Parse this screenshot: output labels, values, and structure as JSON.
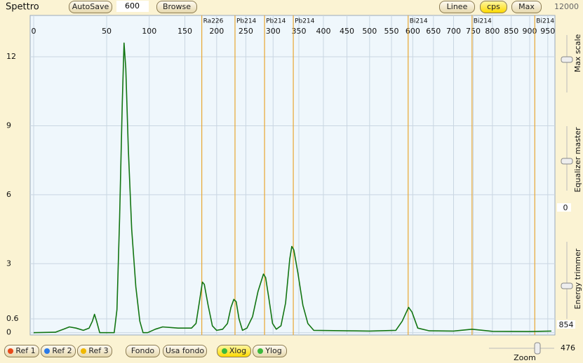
{
  "toolbar": {
    "title": "Spettro",
    "autosave": "AutoSave",
    "interval": 600,
    "browse": "Browse",
    "lines": "Linee",
    "cps": "cps",
    "max": "Max",
    "max_value": 12000
  },
  "chart_data": {
    "type": "line",
    "x": [
      0,
      8,
      13,
      17,
      22,
      28,
      33,
      36,
      38,
      40,
      43,
      58,
      61,
      64,
      67,
      69,
      71,
      74,
      78,
      83,
      88,
      92,
      98,
      108,
      118,
      140,
      160,
      167,
      172,
      177,
      180,
      186,
      193,
      200,
      210,
      218,
      224,
      229,
      233,
      238,
      244,
      252,
      262,
      272,
      282,
      286,
      292,
      299,
      306,
      315,
      324,
      332,
      336,
      340,
      348,
      358,
      368,
      380,
      450,
      500,
      560,
      575,
      590,
      598,
      612,
      640,
      700,
      747,
      800,
      900,
      960
    ],
    "series": [
      {
        "color": "#127512",
        "values": [
          0,
          0.02,
          0.15,
          0.25,
          0.2,
          0.1,
          0.2,
          0.5,
          0.8,
          0.5,
          0,
          0,
          1,
          5,
          10,
          12.6,
          11.5,
          8,
          4.5,
          2,
          0.5,
          0,
          0,
          0.15,
          0.25,
          0.2,
          0.2,
          0.4,
          1.3,
          2.2,
          2.1,
          1.2,
          0.3,
          0.1,
          0.15,
          0.4,
          1.1,
          1.45,
          1.35,
          0.6,
          0.1,
          0.2,
          0.7,
          1.8,
          2.55,
          2.4,
          1.5,
          0.4,
          0.15,
          0.3,
          1.3,
          3.2,
          3.75,
          3.6,
          2.6,
          1.2,
          0.4,
          0.1,
          0.08,
          0.07,
          0.1,
          0.5,
          1.1,
          0.9,
          0.2,
          0.08,
          0.07,
          0.15,
          0.06,
          0.05,
          0.07
        ]
      }
    ],
    "xlim": [
      0,
      970
    ],
    "ylim": [
      -0.1,
      13.8
    ],
    "xticks": [
      0,
      50,
      100,
      150,
      200,
      250,
      300,
      350,
      400,
      450,
      500,
      550,
      600,
      650,
      700,
      750,
      800,
      850,
      900,
      950
    ],
    "yticks": [
      0,
      0.6,
      3,
      6,
      9,
      12
    ],
    "grid": true,
    "markers": [
      {
        "label": "Ra226",
        "x": 176
      },
      {
        "label": "Pb214",
        "x": 231
      },
      {
        "label": "Pb214",
        "x": 284
      },
      {
        "label": "Pb214",
        "x": 339
      },
      {
        "label": "Bi214",
        "x": 589
      },
      {
        "label": "Bi214",
        "x": 747
      },
      {
        "label": "Bi214",
        "x": 914
      }
    ],
    "marker_color": "#e8a630"
  },
  "right_panel": {
    "max_scale": "Max scale",
    "equalizer": "Equalizer master",
    "equalizer_value": 0,
    "trimmer": "Energy trimmer",
    "trimmer_value": 854
  },
  "bottom_bar": {
    "ref1": "Ref 1",
    "ref2": "Ref 2",
    "ref3": "Ref 3",
    "fondo": "Fondo",
    "usa_fondo": "Usa fondo",
    "xlog": "Xlog",
    "ylog": "Ylog",
    "zoom_label": "Zoom",
    "zoom_value": 476
  }
}
